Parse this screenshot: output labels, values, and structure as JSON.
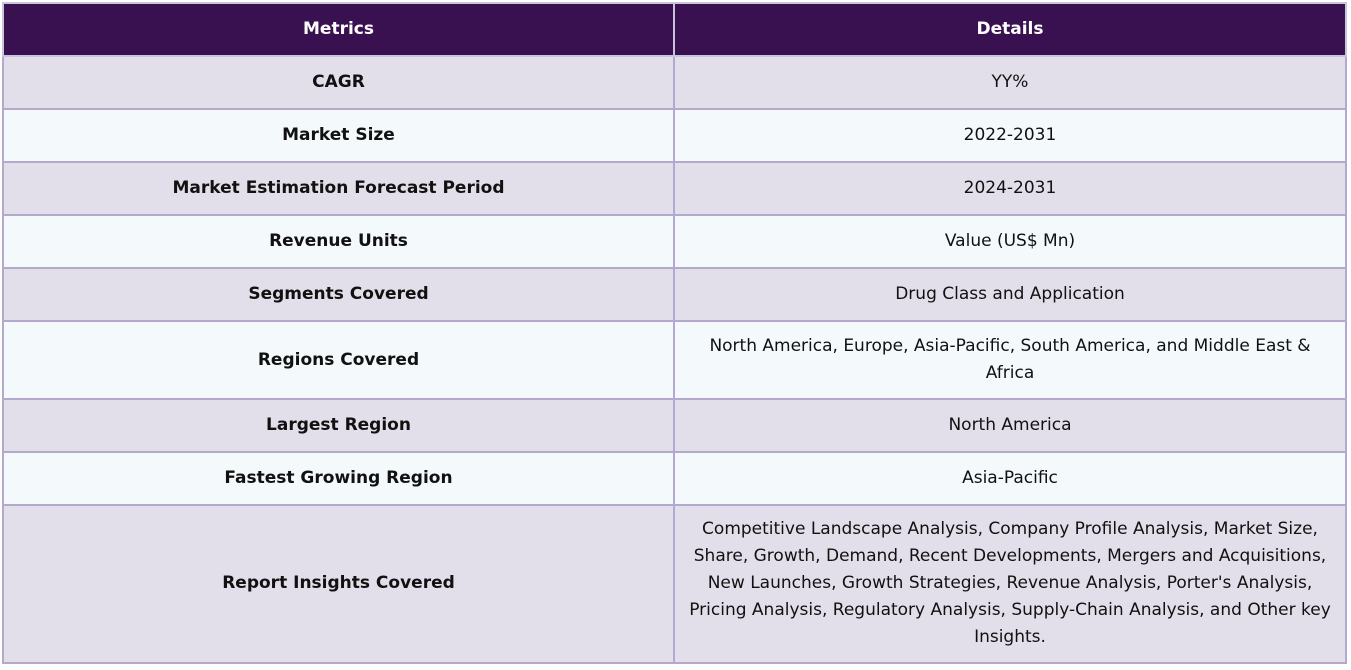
{
  "table": {
    "headers": [
      "Metrics",
      "Details"
    ],
    "rows": [
      {
        "metric": "CAGR",
        "detail": "YY%"
      },
      {
        "metric": "Market Size",
        "detail": "2022-2031"
      },
      {
        "metric": "Market Estimation Forecast Period",
        "detail": "2024-2031"
      },
      {
        "metric": "Revenue Units",
        "detail": "Value (US$ Mn)"
      },
      {
        "metric": "Segments Covered",
        "detail": "Drug Class and Application"
      },
      {
        "metric": "Regions Covered",
        "detail": "North America, Europe, Asia-Pacific, South America, and Middle East & Africa"
      },
      {
        "metric": "Largest Region",
        "detail": "North America"
      },
      {
        "metric": "Fastest Growing Region",
        "detail": "Asia-Pacific"
      },
      {
        "metric": "Report Insights Covered",
        "detail": "Competitive Landscape Analysis, Company Profile Analysis, Market Size, Share, Growth, Demand, Recent Developments, Mergers and Acquisitions, New Launches, Growth Strategies, Revenue Analysis, Porter's Analysis, Pricing Analysis, Regulatory Analysis, Supply-Chain Analysis, and Other key Insights."
      }
    ]
  },
  "colors": {
    "header_bg": "#3a1150",
    "row_odd_bg": "#e2dfea",
    "row_even_bg": "#f4f9fc",
    "border": "#b3a9cf"
  }
}
